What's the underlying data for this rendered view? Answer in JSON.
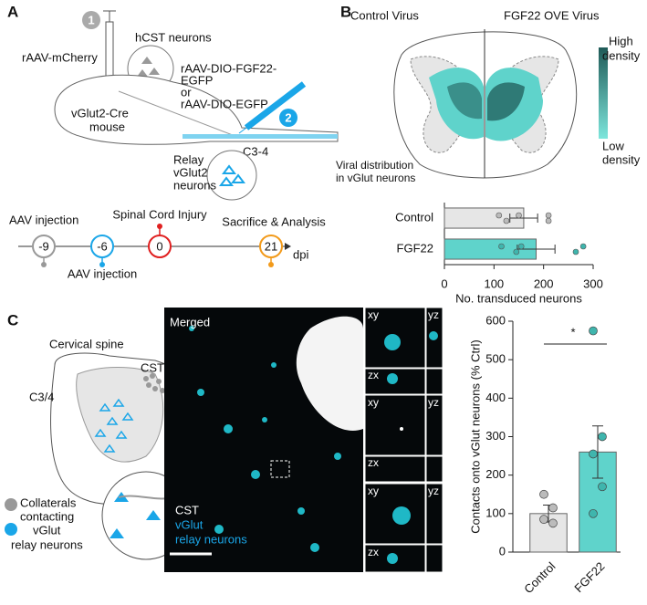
{
  "panel_a": {
    "label": "A",
    "step1": "1",
    "step2": "2",
    "virus1": "rAAV-mCherry",
    "hcst": "hCST neurons",
    "virus2": [
      "rAAV-DIO-FGF22-",
      "EGFP",
      "or",
      "rAAV-DIO-EGFP"
    ],
    "mouse": [
      "vGlut2-Cre",
      "mouse"
    ],
    "level": "C3-4",
    "relay": [
      "Relay",
      "vGlut2",
      "neurons"
    ],
    "timeline": {
      "days": [
        "-9",
        "-6",
        "0",
        "21"
      ],
      "unit": "dpi",
      "events": [
        "AAV injection",
        "AAV injection",
        "Spinal Cord Injury",
        "Sacrifice & Analysis"
      ]
    }
  },
  "panel_b": {
    "label": "B",
    "control": "Control Virus",
    "fgf22": "FGF22 OVE Virus",
    "high": [
      "High",
      "density"
    ],
    "low": [
      "Low",
      "density"
    ],
    "caption": [
      "Viral distribution",
      "in vGlut neurons"
    ]
  },
  "panel_c": {
    "label": "C",
    "spine": "Cervical spine",
    "cst": "CST",
    "level": "C3/4",
    "legend": [
      "Collaterals",
      "contacting",
      "vGlut",
      "relay neurons"
    ],
    "image": {
      "title": "Merged",
      "channels": [
        "CST",
        "vGlut",
        "relay neurons"
      ],
      "insets": [
        "xy",
        "yz",
        "zx",
        "xy",
        "yz",
        "zx",
        "xy",
        "yz",
        "zx"
      ]
    }
  },
  "chart_data": [
    {
      "type": "bar",
      "orientation": "horizontal",
      "categories": [
        "Control",
        "FGF22"
      ],
      "values": [
        160,
        185
      ],
      "errors": [
        28,
        38
      ],
      "points": [
        [
          110,
          125,
          150,
          210,
          210
        ],
        [
          115,
          145,
          155,
          265,
          280
        ]
      ],
      "colors": [
        "#e6e6e6",
        "#5fd3cb"
      ],
      "xlim": [
        0,
        300
      ],
      "xticks": [
        0,
        100,
        200,
        300
      ],
      "xlabel": "No. transduced neurons"
    },
    {
      "type": "bar",
      "orientation": "vertical",
      "categories": [
        "Control",
        "FGF22"
      ],
      "values": [
        100,
        260
      ],
      "errors": [
        22,
        68
      ],
      "points": [
        [
          150,
          115,
          85,
          75
        ],
        [
          575,
          300,
          255,
          170,
          100
        ]
      ],
      "colors": [
        "#e6e6e6",
        "#5fd3cb"
      ],
      "ylim": [
        0,
        600
      ],
      "yticks": [
        0,
        100,
        200,
        300,
        400,
        500,
        600
      ],
      "ylabel": "Contacts onto vGlut neurons (% Ctrl)",
      "annotation": "*"
    }
  ]
}
